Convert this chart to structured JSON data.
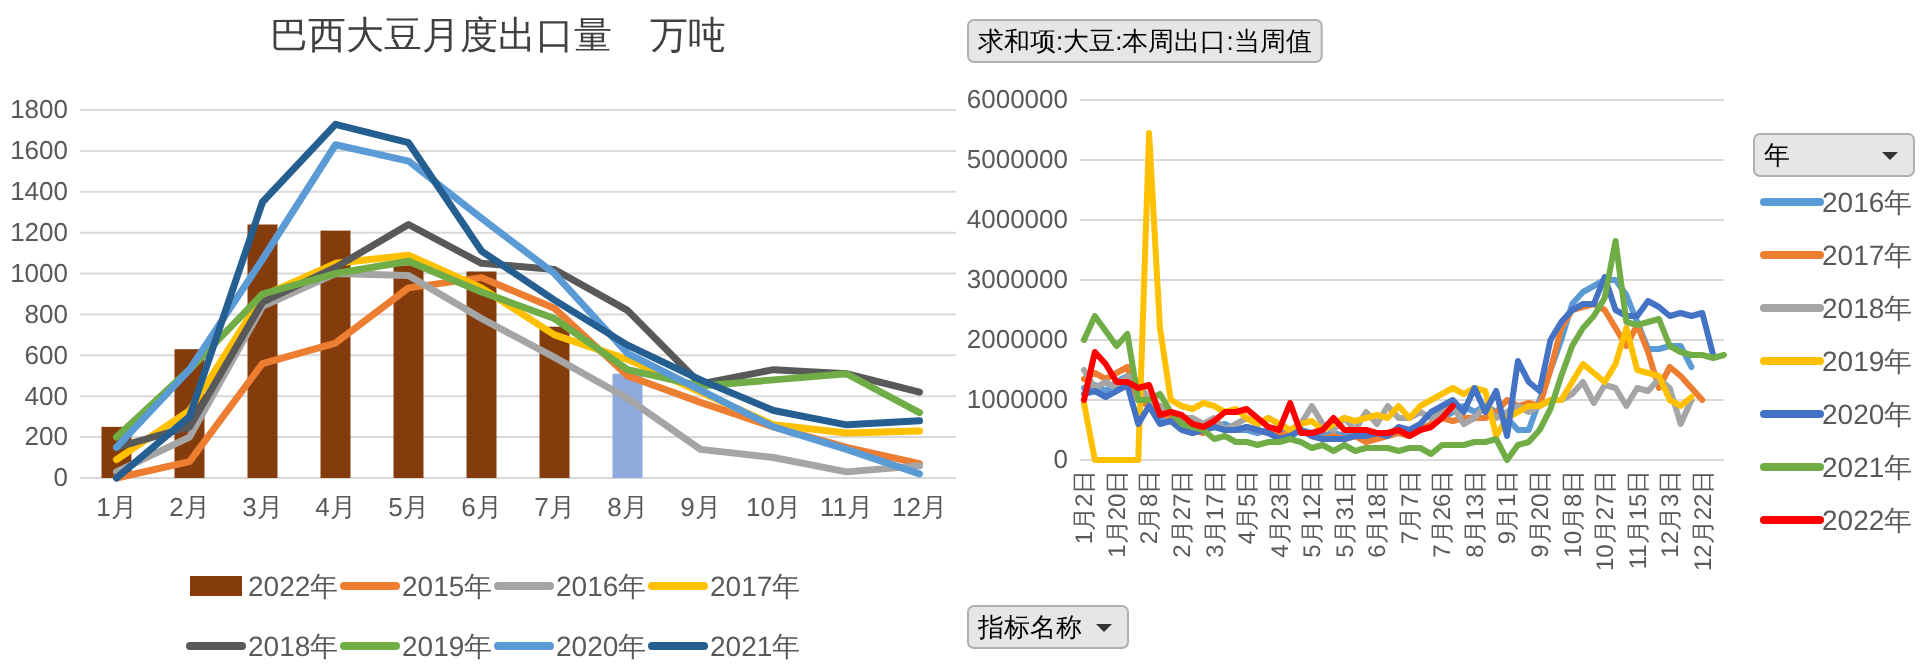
{
  "chart_data": [
    {
      "type": "bar",
      "title": "巴西大豆月度出口量　万吨",
      "categories": [
        "1月",
        "2月",
        "3月",
        "4月",
        "5月",
        "6月",
        "7月",
        "8月",
        "9月",
        "10月",
        "11月",
        "12月"
      ],
      "ylim": [
        0,
        1800
      ],
      "yticks": [
        0,
        200,
        400,
        600,
        800,
        1000,
        1200,
        1400,
        1600,
        1800
      ],
      "grid": "y",
      "legend": "bottom",
      "series": [
        {
          "name": "2022年",
          "type": "bar",
          "color": "#843c0c",
          "colors": [
            "#843c0c",
            "#843c0c",
            "#843c0c",
            "#843c0c",
            "#843c0c",
            "#843c0c",
            "#843c0c",
            "#8faadc",
            null,
            null,
            null,
            null
          ],
          "values": [
            250,
            630,
            1240,
            1210,
            1040,
            1010,
            740,
            510,
            null,
            null,
            null,
            null
          ]
        },
        {
          "name": "2015年",
          "type": "line",
          "color": "#ed7d31",
          "values": [
            0,
            80,
            560,
            660,
            930,
            980,
            830,
            500,
            370,
            250,
            150,
            70
          ]
        },
        {
          "name": "2016年",
          "type": "line",
          "color": "#a5a5a5",
          "values": [
            30,
            200,
            840,
            1000,
            990,
            780,
            590,
            390,
            140,
            100,
            30,
            60
          ]
        },
        {
          "name": "2017年",
          "type": "line",
          "color": "#ffc000",
          "values": [
            90,
            330,
            890,
            1050,
            1090,
            930,
            700,
            580,
            420,
            260,
            220,
            230
          ]
        },
        {
          "name": "2018年",
          "type": "line",
          "color": "#595959",
          "values": [
            150,
            250,
            860,
            1030,
            1240,
            1050,
            1020,
            820,
            460,
            530,
            510,
            420
          ]
        },
        {
          "name": "2019年",
          "type": "line",
          "color": "#70ad47",
          "values": [
            200,
            530,
            900,
            1000,
            1060,
            910,
            780,
            530,
            450,
            480,
            510,
            320
          ]
        },
        {
          "name": "2020年",
          "type": "line",
          "color": "#5b9bd5",
          "values": [
            150,
            530,
            1070,
            1630,
            1550,
            1270,
            1000,
            610,
            430,
            250,
            140,
            20
          ]
        },
        {
          "name": "2021年",
          "type": "line",
          "color": "#255e91",
          "values": [
            0,
            300,
            1350,
            1730,
            1640,
            1110,
            870,
            650,
            480,
            330,
            260,
            280
          ]
        }
      ]
    },
    {
      "type": "line",
      "annotations": [
        "求和项:大豆:本周出口:当周值",
        "指标名称"
      ],
      "legend_title": "年",
      "categories": [
        "1月2日",
        null,
        null,
        "1月20日",
        null,
        null,
        "2月8日",
        null,
        null,
        "2月27日",
        null,
        null,
        "3月17日",
        null,
        null,
        "4月5日",
        null,
        null,
        "4月23日",
        null,
        null,
        "5月12日",
        null,
        null,
        "5月31日",
        null,
        null,
        "6月18日",
        null,
        null,
        "7月7日",
        null,
        null,
        "7月26日",
        null,
        null,
        "8月13日",
        null,
        null,
        "9月1日",
        null,
        null,
        "9月20日",
        null,
        null,
        "10月8日",
        null,
        null,
        "10月27日",
        null,
        null,
        "11月15日",
        null,
        null,
        "12月3日",
        null,
        null,
        "12月22日",
        null,
        null
      ],
      "ylim": [
        0,
        6000000
      ],
      "yticks": [
        0,
        1000000,
        2000000,
        3000000,
        4000000,
        5000000,
        6000000
      ],
      "grid": "y",
      "legend": "right",
      "series": [
        {
          "name": "2016年",
          "color": "#5b9bd5",
          "values": [
            1200000,
            1250000,
            1150000,
            1300000,
            1400000,
            1300000,
            900000,
            700000,
            700000,
            600000,
            500000,
            500000,
            550000,
            600000,
            500000,
            500000,
            450000,
            500000,
            450000,
            450000,
            500000,
            450000,
            400000,
            450000,
            400000,
            400000,
            450000,
            400000,
            450000,
            500000,
            450000,
            500000,
            600000,
            700000,
            800000,
            900000,
            800000,
            900000,
            800000,
            700000,
            500000,
            500000,
            1000000,
            1500000,
            2000000,
            2600000,
            2800000,
            2900000,
            3000000,
            3000000,
            2750000,
            2300000,
            1850000,
            1850000,
            1900000,
            1900000,
            1550000,
            null,
            null,
            null
          ]
        },
        {
          "name": "2017年",
          "color": "#ed7d31",
          "values": [
            1350000,
            1450000,
            1350000,
            1450000,
            1550000,
            1000000,
            900000,
            800000,
            700000,
            600000,
            500000,
            450000,
            600000,
            500000,
            500000,
            550000,
            500000,
            450000,
            400000,
            450000,
            500000,
            400000,
            350000,
            400000,
            350000,
            400000,
            300000,
            350000,
            400000,
            450000,
            400000,
            500000,
            600000,
            700000,
            650000,
            700000,
            700000,
            700000,
            800000,
            1000000,
            900000,
            950000,
            900000,
            1500000,
            2200000,
            2500000,
            2550000,
            2600000,
            2500000,
            2200000,
            1900000,
            2250000,
            1800000,
            1200000,
            1550000,
            1400000,
            1200000,
            1000000,
            null,
            null
          ]
        },
        {
          "name": "2018年",
          "color": "#a5a5a5",
          "values": [
            1500000,
            1200000,
            1300000,
            1200000,
            1400000,
            1300000,
            1000000,
            900000,
            800000,
            700000,
            700000,
            600000,
            700000,
            500000,
            600000,
            700000,
            600000,
            700000,
            600000,
            500000,
            600000,
            900000,
            600000,
            500000,
            700000,
            500000,
            800000,
            600000,
            900000,
            700000,
            700000,
            800000,
            700000,
            800000,
            900000,
            600000,
            700000,
            900000,
            700000,
            800000,
            900000,
            800000,
            900000,
            1000000,
            1000000,
            1100000,
            1300000,
            950000,
            1250000,
            1200000,
            900000,
            1200000,
            1150000,
            1350000,
            1200000,
            600000,
            1000000,
            null,
            null,
            null
          ]
        },
        {
          "name": "2019年",
          "color": "#ffc000",
          "values": [
            950000,
            0,
            0,
            0,
            0,
            0,
            5450000,
            2200000,
            1000000,
            900000,
            850000,
            950000,
            900000,
            800000,
            850000,
            700000,
            600000,
            700000,
            600000,
            500000,
            600000,
            650000,
            500000,
            600000,
            700000,
            650000,
            700000,
            750000,
            700000,
            900000,
            700000,
            900000,
            1000000,
            1100000,
            1200000,
            1100000,
            1200000,
            1150000,
            400000,
            700000,
            800000,
            900000,
            900000,
            1000000,
            1000000,
            1300000,
            1600000,
            1450000,
            1300000,
            1600000,
            2200000,
            1500000,
            1450000,
            1400000,
            1000000,
            900000,
            1050000,
            null,
            null,
            null
          ]
        },
        {
          "name": "2020年",
          "color": "#4472c4",
          "values": [
            1100000,
            1150000,
            1050000,
            1150000,
            1250000,
            600000,
            900000,
            600000,
            650000,
            500000,
            450000,
            500000,
            550000,
            500000,
            500000,
            550000,
            500000,
            450000,
            350000,
            400000,
            500000,
            400000,
            350000,
            350000,
            350000,
            400000,
            400000,
            450000,
            400000,
            550000,
            500000,
            600000,
            800000,
            900000,
            1000000,
            800000,
            1200000,
            800000,
            1150000,
            400000,
            1650000,
            1300000,
            1150000,
            2000000,
            2300000,
            2500000,
            2600000,
            2600000,
            3050000,
            2500000,
            2400000,
            2400000,
            2650000,
            2550000,
            2400000,
            2450000,
            2400000,
            2450000,
            1750000,
            null
          ]
        },
        {
          "name": "2021年",
          "color": "#70ad47",
          "values": [
            2000000,
            2400000,
            2150000,
            1900000,
            2100000,
            1000000,
            1000000,
            1100000,
            800000,
            600000,
            550000,
            500000,
            350000,
            400000,
            300000,
            300000,
            250000,
            300000,
            300000,
            350000,
            300000,
            200000,
            250000,
            150000,
            250000,
            150000,
            200000,
            200000,
            200000,
            150000,
            200000,
            200000,
            100000,
            250000,
            250000,
            250000,
            300000,
            300000,
            350000,
            0,
            250000,
            300000,
            500000,
            850000,
            1400000,
            1900000,
            2200000,
            2400000,
            2700000,
            3650000,
            2300000,
            2250000,
            2300000,
            2350000,
            1900000,
            1800000,
            1750000,
            1750000,
            1700000,
            1750000
          ]
        },
        {
          "name": "2022年",
          "color": "#ff0000",
          "values": [
            1000000,
            1800000,
            1600000,
            1300000,
            1300000,
            1200000,
            1250000,
            750000,
            800000,
            750000,
            600000,
            550000,
            650000,
            800000,
            800000,
            850000,
            700000,
            550000,
            500000,
            950000,
            450000,
            450000,
            500000,
            700000,
            500000,
            500000,
            500000,
            450000,
            450000,
            500000,
            400000,
            500000,
            550000,
            700000,
            900000,
            null,
            null,
            null,
            null,
            null,
            null,
            null,
            null,
            null,
            null,
            null,
            null,
            null,
            null,
            null,
            null,
            null,
            null,
            null,
            null,
            null,
            null,
            null,
            null,
            null
          ]
        }
      ]
    }
  ]
}
